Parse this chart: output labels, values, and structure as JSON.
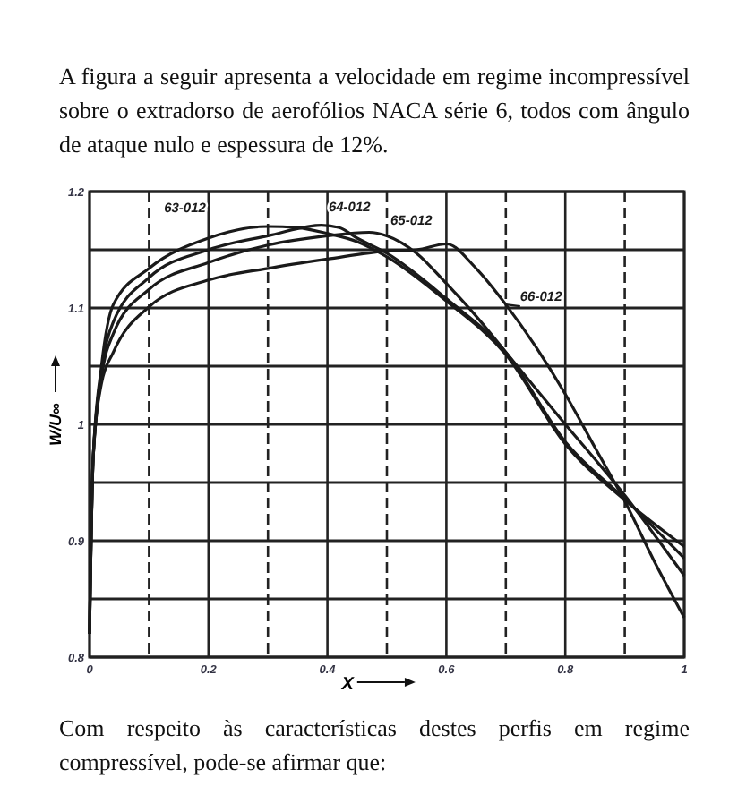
{
  "chart_data": {
    "type": "line",
    "title": "A figura a seguir apresenta a velocidade em regime incompressível sobre o extradorso de aerofólios NACA série 6, todos com ângulo de ataque nulo e espessura de 12%.",
    "annotations": [
      "Com respeito às características destes perfis em regime compressível, pode-se afirmar que:"
    ],
    "xlabel": "X",
    "ylabel": "W/U∞",
    "grid": true,
    "line_style": "solid",
    "marker": "none",
    "xlim": [
      0,
      1
    ],
    "ylim": [
      0.8,
      1.2
    ],
    "xticks": [
      0,
      {
        "value": 0.1,
        "label": null
      },
      0.2,
      {
        "value": 0.3,
        "label": null
      },
      0.4,
      {
        "value": 0.5,
        "label": null
      },
      0.6,
      {
        "value": 0.7,
        "label": null
      },
      0.8,
      {
        "value": 0.9,
        "label": null
      },
      1.0
    ],
    "yticks": [
      0.8,
      {
        "value": 0.85,
        "label": null
      },
      0.9,
      {
        "value": 0.95,
        "label": null
      },
      1.0,
      {
        "value": 1.05,
        "label": null
      },
      1.1,
      {
        "value": 1.15,
        "label": null
      },
      1.2
    ],
    "series": [
      {
        "name": "63-012",
        "color": "#1a1a1a",
        "x": [
          0,
          0.006,
          0.02,
          0.04,
          0.1,
          0.2,
          0.3,
          0.35,
          0.4,
          0.45,
          0.5,
          0.6,
          0.7,
          0.8,
          0.9,
          1.0
        ],
        "values": [
          0.82,
          0.97,
          1.05,
          1.103,
          1.134,
          1.16,
          1.17,
          1.169,
          1.164,
          1.157,
          1.144,
          1.106,
          1.06,
          0.983,
          0.935,
          0.895
        ]
      },
      {
        "name": "64-012",
        "color": "#1a1a1a",
        "x": [
          0,
          0.006,
          0.02,
          0.04,
          0.1,
          0.2,
          0.3,
          0.39,
          0.42,
          0.45,
          0.5,
          0.6,
          0.7,
          0.8,
          0.9,
          1.0
        ],
        "values": [
          0.82,
          0.97,
          1.045,
          1.088,
          1.126,
          1.15,
          1.162,
          1.171,
          1.169,
          1.16,
          1.147,
          1.108,
          1.062,
          0.985,
          0.936,
          0.885
        ]
      },
      {
        "name": "65-012",
        "color": "#1a1a1a",
        "x": [
          0,
          0.006,
          0.02,
          0.04,
          0.1,
          0.2,
          0.3,
          0.4,
          0.47,
          0.5,
          0.55,
          0.6,
          0.65,
          0.7,
          0.75,
          0.8,
          0.85,
          0.9,
          0.95,
          1.0
        ],
        "values": [
          0.82,
          0.97,
          1.04,
          1.078,
          1.116,
          1.139,
          1.154,
          1.162,
          1.165,
          1.162,
          1.147,
          1.121,
          1.093,
          1.062,
          1.031,
          1.0,
          0.97,
          0.939,
          0.905,
          0.87
        ]
      },
      {
        "name": "66-012",
        "color": "#1a1a1a",
        "x": [
          0,
          0.006,
          0.02,
          0.04,
          0.1,
          0.2,
          0.3,
          0.4,
          0.5,
          0.55,
          0.6,
          0.65,
          0.7,
          0.75,
          0.8,
          0.85,
          0.9,
          0.95,
          1.0
        ],
        "values": [
          0.82,
          0.97,
          1.035,
          1.062,
          1.101,
          1.124,
          1.134,
          1.142,
          1.149,
          1.15,
          1.155,
          1.134,
          1.103,
          1.067,
          1.026,
          0.98,
          0.934,
          0.882,
          0.834
        ]
      }
    ]
  }
}
